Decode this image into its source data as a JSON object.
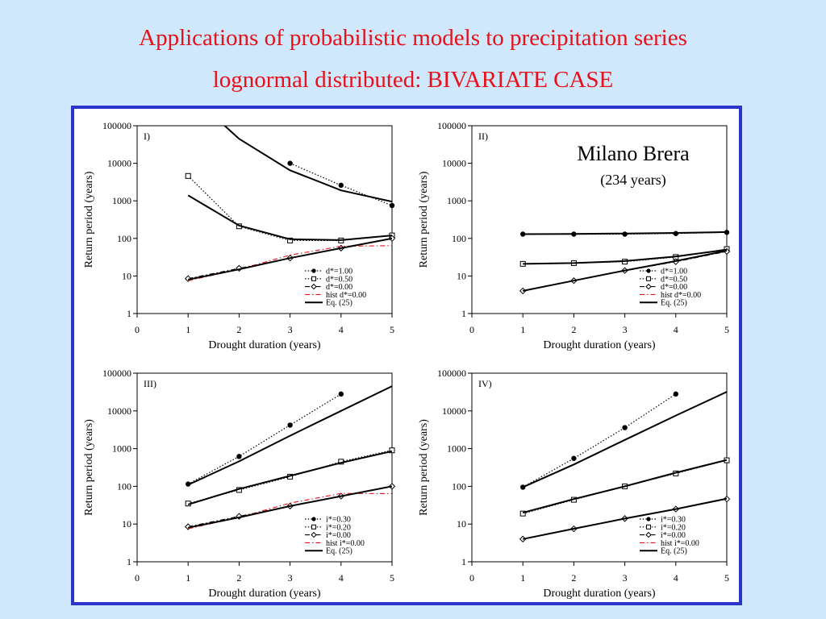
{
  "slide": {
    "title_line1": "Applications of probabilistic models to precipitation series",
    "title_line2": "lognormal distributed: BIVARIATE CASE",
    "station": "Milano Brera",
    "years_note": "(234 years)",
    "colors": {
      "title": "#e8101a",
      "frame": "#2c35c9",
      "background": "#cfe8fb",
      "hist": "#e8101a"
    }
  },
  "chart_data": [
    {
      "type": "line",
      "panel_label": "I)",
      "xlabel": "Drought duration (years)",
      "ylabel": "Return period (years)",
      "xlim": [
        0,
        5
      ],
      "ylim": [
        1,
        100000
      ],
      "yscale": "log",
      "x_ticks": [
        "0",
        "1",
        "2",
        "3",
        "4",
        "5"
      ],
      "y_ticks": [
        "1",
        "10",
        "100",
        "1000",
        "10000",
        "100000"
      ],
      "legend_position": "bottom-right",
      "series": [
        {
          "name": "d*=1.00",
          "style": "dotted",
          "marker": "filled-circle",
          "x": [
            3,
            4,
            5
          ],
          "y": [
            10000,
            2600,
            750
          ]
        },
        {
          "name": "d*=0.50",
          "style": "dotted",
          "marker": "open-square",
          "x": [
            1,
            2,
            3,
            4,
            5
          ],
          "y": [
            4600,
            210,
            88,
            88,
            120
          ]
        },
        {
          "name": "d*=0.00",
          "style": "dash-dot",
          "marker": "open-diamond",
          "x": [
            1,
            2,
            3,
            4,
            5
          ],
          "y": [
            8.5,
            16,
            30,
            55,
            100
          ]
        },
        {
          "name": "hist d*=0.00",
          "style": "red-dash-dot",
          "marker": "none",
          "x": [
            1,
            2,
            3,
            4,
            5
          ],
          "y": [
            7.5,
            15,
            36,
            62,
            64
          ]
        },
        {
          "name": "Eq. (25)",
          "style": "solid",
          "marker": "none",
          "x": [
            1,
            2,
            3,
            4,
            5
          ],
          "y": [
            8,
            15,
            30,
            55,
            100
          ]
        },
        {
          "name": "",
          "style": "solid",
          "marker": "none",
          "x": [
            1.7,
            2,
            3,
            4,
            5
          ],
          "y": [
            105000,
            45000,
            6500,
            1900,
            950
          ]
        },
        {
          "name": "",
          "style": "solid",
          "marker": "none",
          "x": [
            1,
            2,
            3,
            4,
            5
          ],
          "y": [
            1400,
            220,
            95,
            90,
            120
          ]
        }
      ]
    },
    {
      "type": "line",
      "panel_label": "II)",
      "xlabel": "Drought duration (years)",
      "ylabel": "Return period (years)",
      "xlim": [
        0,
        5
      ],
      "ylim": [
        1,
        100000
      ],
      "yscale": "log",
      "x_ticks": [
        "0",
        "1",
        "2",
        "3",
        "4",
        "5"
      ],
      "y_ticks": [
        "1",
        "10",
        "100",
        "1000",
        "10000",
        "100000"
      ],
      "legend_position": "bottom-right",
      "series": [
        {
          "name": "d*=1.00",
          "style": "dotted",
          "marker": "filled-circle",
          "x": [
            1,
            2,
            3,
            4,
            5
          ],
          "y": [
            130,
            130,
            130,
            135,
            145
          ]
        },
        {
          "name": "d*=0.50",
          "style": "dotted",
          "marker": "open-square",
          "x": [
            1,
            2,
            3,
            4,
            5
          ],
          "y": [
            21,
            22,
            24,
            32,
            52
          ]
        },
        {
          "name": "d*=0.00",
          "style": "dash-dot",
          "marker": "open-diamond",
          "x": [
            1,
            2,
            3,
            4,
            5
          ],
          "y": [
            4,
            7.5,
            14,
            24,
            45
          ]
        },
        {
          "name": "hist d*=0.00",
          "style": "red-dash-dot",
          "marker": "none",
          "x": [
            1,
            2,
            3,
            4,
            5
          ],
          "y": [
            4,
            7.5,
            14,
            25,
            48
          ]
        },
        {
          "name": "Eq. (25)",
          "style": "solid",
          "marker": "none",
          "x": [
            1,
            2,
            3,
            4,
            5
          ],
          "y": [
            4,
            7.5,
            14,
            25,
            47
          ]
        },
        {
          "name": "",
          "style": "solid",
          "marker": "none",
          "x": [
            1,
            2,
            3,
            4,
            5
          ],
          "y": [
            130,
            132,
            135,
            140,
            148
          ]
        },
        {
          "name": "",
          "style": "solid",
          "marker": "none",
          "x": [
            1,
            2,
            3,
            4,
            5
          ],
          "y": [
            21,
            22,
            25,
            33,
            50
          ]
        }
      ]
    },
    {
      "type": "line",
      "panel_label": "III)",
      "xlabel": "Drought duration (years)",
      "ylabel": "Return period (years)",
      "xlim": [
        0,
        5
      ],
      "ylim": [
        1,
        100000
      ],
      "yscale": "log",
      "x_ticks": [
        "0",
        "1",
        "2",
        "3",
        "4",
        "5"
      ],
      "y_ticks": [
        "1",
        "10",
        "100",
        "1000",
        "10000",
        "100000"
      ],
      "legend_position": "bottom-right",
      "series": [
        {
          "name": "i*=0.30",
          "style": "dotted",
          "marker": "filled-circle",
          "x": [
            1,
            2,
            3,
            4
          ],
          "y": [
            115,
            620,
            4200,
            28000
          ]
        },
        {
          "name": "i*=0.20",
          "style": "dotted",
          "marker": "open-square",
          "x": [
            1,
            2,
            3,
            4,
            5
          ],
          "y": [
            35,
            80,
            180,
            450,
            900
          ]
        },
        {
          "name": "i*=0.00",
          "style": "dash-dot",
          "marker": "open-diamond",
          "x": [
            1,
            2,
            3,
            4,
            5
          ],
          "y": [
            8.5,
            16,
            30,
            55,
            100
          ]
        },
        {
          "name": "hist i*=0.00",
          "style": "red-dash-dot",
          "marker": "none",
          "x": [
            1,
            2,
            3,
            4,
            5
          ],
          "y": [
            7.5,
            15,
            36,
            65,
            64
          ]
        },
        {
          "name": "Eq. (25)",
          "style": "solid",
          "marker": "none",
          "x": [
            1,
            2,
            3,
            4,
            5
          ],
          "y": [
            8,
            15,
            30,
            55,
            100
          ]
        },
        {
          "name": "",
          "style": "solid",
          "marker": "none",
          "x": [
            1,
            2,
            3,
            4,
            5
          ],
          "y": [
            110,
            460,
            2200,
            10000,
            45000
          ]
        },
        {
          "name": "",
          "style": "solid",
          "marker": "none",
          "x": [
            1,
            2,
            3,
            4,
            5
          ],
          "y": [
            33,
            85,
            190,
            420,
            850
          ]
        }
      ]
    },
    {
      "type": "line",
      "panel_label": "IV)",
      "xlabel": "Drought duration (years)",
      "ylabel": "Return period (years)",
      "xlim": [
        0,
        5
      ],
      "ylim": [
        1,
        100000
      ],
      "yscale": "log",
      "x_ticks": [
        "0",
        "1",
        "2",
        "3",
        "4",
        "5"
      ],
      "y_ticks": [
        "1",
        "10",
        "100",
        "1000",
        "10000",
        "100000"
      ],
      "legend_position": "bottom-right",
      "series": [
        {
          "name": "i*=0.30",
          "style": "dotted",
          "marker": "filled-circle",
          "x": [
            1,
            2,
            3,
            4
          ],
          "y": [
            95,
            550,
            3600,
            28000
          ]
        },
        {
          "name": "i*=0.20",
          "style": "dotted",
          "marker": "open-square",
          "x": [
            1,
            2,
            3,
            4,
            5
          ],
          "y": [
            19,
            44,
            100,
            220,
            490
          ]
        },
        {
          "name": "i*=0.00",
          "style": "dash-dot",
          "marker": "open-diamond",
          "x": [
            1,
            2,
            3,
            4,
            5
          ],
          "y": [
            4,
            7.5,
            14,
            25,
            46
          ]
        },
        {
          "name": "hist i*=0.00",
          "style": "red-dash-dot",
          "marker": "none",
          "x": [
            1,
            2,
            3,
            4,
            5
          ],
          "y": [
            4,
            7.5,
            14,
            25,
            48
          ]
        },
        {
          "name": "Eq. (25)",
          "style": "solid",
          "marker": "none",
          "x": [
            1,
            2,
            3,
            4,
            5
          ],
          "y": [
            4,
            7.5,
            14,
            25,
            47
          ]
        },
        {
          "name": "",
          "style": "solid",
          "marker": "none",
          "x": [
            1,
            2,
            3,
            4,
            5
          ],
          "y": [
            95,
            380,
            1700,
            7500,
            32000
          ]
        },
        {
          "name": "",
          "style": "solid",
          "marker": "none",
          "x": [
            1,
            2,
            3,
            4,
            5
          ],
          "y": [
            20,
            46,
            100,
            230,
            500
          ]
        }
      ]
    }
  ]
}
